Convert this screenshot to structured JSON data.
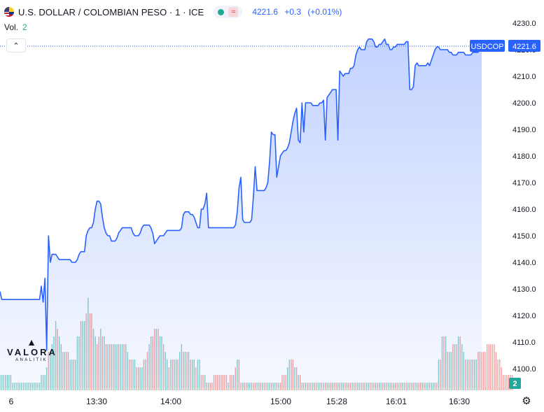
{
  "header": {
    "symbol_text": "U.S. DOLLAR / COLOMBIAN PESO · 1 · ICE",
    "status_icon": "market-open-dot",
    "delay_icon": "≈",
    "last_price": "4221.6",
    "change": "+0.3",
    "change_pct": "(+0.01%)",
    "volume_label": "Vol.",
    "volume_value": "2",
    "collapse_icon": "chevron-up-icon"
  },
  "price_scale": {
    "ticks": [
      "4230.0",
      "4220.0",
      "4210.0",
      "4200.0",
      "4190.0",
      "4180.0",
      "4170.0",
      "4160.0",
      "4150.0",
      "4140.0",
      "4130.0",
      "4120.0",
      "4110.0",
      "4100.0"
    ],
    "symbol_badge": "USDCOP",
    "last_badge": "4221.6",
    "volume_badge": "2"
  },
  "time_scale": {
    "ticks": [
      "6",
      "13:30",
      "14:00",
      "15:00",
      "15:28",
      "16:01",
      "16:30"
    ]
  },
  "watermark": {
    "logo_mark": "▲",
    "name": "VALORA",
    "sub": "ANALITIK"
  },
  "colors": {
    "line": "#2962ff",
    "up_volume": "#26a69a",
    "down_volume": "#ef5350",
    "accent": "#2962ff"
  },
  "chart_data": {
    "type": "area",
    "title": "U.S. DOLLAR / COLOMBIAN PESO · 1 · ICE",
    "xlabel": "",
    "ylabel": "",
    "ylim": [
      4093,
      4232
    ],
    "x_ticks": [
      "6",
      "13:30",
      "14:00",
      "15:00",
      "15:28",
      "16:01",
      "16:30"
    ],
    "grid": false,
    "price": [
      4129,
      4126,
      4126,
      4126,
      4126,
      4126,
      4126,
      4126,
      4126,
      4126,
      4126,
      4126,
      4126,
      4126,
      4126,
      4126,
      4126,
      4126,
      4126,
      4126,
      4126,
      4126,
      4126,
      4131,
      4125,
      4134,
      4107,
      4150,
      4140,
      4143,
      4143,
      4143,
      4142,
      4141,
      4141,
      4141,
      4141,
      4141,
      4141,
      4141,
      4140,
      4140,
      4140,
      4141,
      4143,
      4144,
      4144,
      4144,
      4150,
      4152,
      4153,
      4153,
      4155,
      4160,
      4163,
      4163,
      4162,
      4157,
      4153,
      4151,
      4150,
      4150,
      4148,
      4148,
      4148,
      4149,
      4151,
      4152,
      4153,
      4153,
      4153,
      4153,
      4153,
      4153,
      4151,
      4150,
      4150,
      4150,
      4151,
      4153,
      4154,
      4154,
      4154,
      4154,
      4153,
      4151,
      4147,
      4148,
      4149,
      4150,
      4150,
      4150,
      4151,
      4152,
      4152,
      4152,
      4152,
      4152,
      4152,
      4152,
      4152,
      4153,
      4158,
      4159,
      4159,
      4159,
      4158,
      4158,
      4157,
      4155,
      4153,
      4153,
      4160,
      4160,
      4162,
      4166,
      4153,
      4153,
      4153,
      4153,
      4153,
      4153,
      4153,
      4153,
      4153,
      4153,
      4153,
      4153,
      4153,
      4153,
      4153,
      4154,
      4159,
      4168,
      4172,
      4156,
      4155,
      4155,
      4155,
      4155,
      4156,
      4165,
      4176,
      4167,
      4167,
      4167,
      4167,
      4167,
      4168,
      4170,
      4178,
      4189,
      4188,
      4188,
      4172,
      4176,
      4180,
      4181,
      4182,
      4182,
      4183,
      4185,
      4189,
      4193,
      4196,
      4198,
      4186,
      4185,
      4200,
      4189,
      4200,
      4200,
      4200,
      4200,
      4199,
      4199,
      4199,
      4199,
      4200,
      4200,
      4201,
      4186,
      4202,
      4203,
      4204,
      4205,
      4205,
      4205,
      4186,
      4212,
      4211,
      4210,
      4211,
      4211,
      4211,
      4213,
      4213,
      4214,
      4218,
      4220,
      4221,
      4220,
      4220,
      4220,
      4223,
      4224,
      4224,
      4224,
      4223,
      4221,
      4221,
      4222,
      4222,
      4223,
      4224,
      4222,
      4222,
      4220,
      4220,
      4221,
      4221,
      4222,
      4222,
      4222,
      4222,
      4222,
      4223,
      4223,
      4205,
      4205,
      4206,
      4214,
      4215,
      4214,
      4214,
      4214,
      4214,
      4214,
      4215,
      4214,
      4216,
      4218,
      4220,
      4221,
      4221,
      4220,
      4220,
      4220,
      4220,
      4220,
      4219,
      4219,
      4218,
      4218,
      4218,
      4219,
      4219,
      4219,
      4219,
      4218,
      4218,
      4218,
      4218,
      4219,
      4219,
      4219,
      4219,
      4221,
      4221
    ],
    "volume": [
      2,
      2,
      2,
      2,
      2,
      2,
      2,
      1,
      1,
      1,
      1,
      1,
      1,
      1,
      1,
      1,
      1,
      1,
      1,
      1,
      1,
      1,
      1,
      2,
      2,
      2,
      3,
      5,
      5,
      6,
      7,
      9,
      8,
      7,
      6,
      5,
      5,
      5,
      5,
      4,
      4,
      4,
      4,
      7,
      7,
      9,
      9,
      9,
      10,
      12,
      10,
      10,
      8,
      7,
      6,
      7,
      8,
      7,
      7,
      6,
      6,
      6,
      6,
      6,
      6,
      6,
      6,
      6,
      6,
      6,
      6,
      5,
      4,
      4,
      4,
      4,
      3,
      3,
      3,
      3,
      4,
      4,
      5,
      6,
      7,
      7,
      8,
      8,
      8,
      7,
      7,
      6,
      5,
      4,
      3,
      4,
      4,
      4,
      4,
      4,
      5,
      6,
      5,
      5,
      5,
      5,
      4,
      4,
      4,
      3,
      4,
      4,
      2,
      2,
      2,
      1,
      1,
      1,
      1,
      2,
      2,
      2,
      2,
      2,
      2,
      2,
      2,
      1,
      2,
      2,
      2,
      3,
      4,
      4,
      1,
      1,
      1,
      1,
      1,
      1,
      1,
      1,
      1,
      1,
      1,
      1,
      1,
      1,
      1,
      1,
      1,
      1,
      1,
      1,
      1,
      1,
      1,
      2,
      2,
      2,
      3,
      4,
      4,
      4,
      3,
      3,
      2,
      2,
      1,
      1,
      1,
      1,
      1,
      1,
      1,
      1,
      1,
      1,
      1,
      1,
      1,
      1,
      1,
      1,
      1,
      1,
      1,
      1,
      1,
      1,
      1,
      1,
      1,
      1,
      1,
      1,
      1,
      1,
      1,
      1,
      1,
      1,
      1,
      1,
      1,
      1,
      1,
      1,
      1,
      1,
      1,
      1,
      1,
      1,
      1,
      1,
      1,
      1,
      1,
      1,
      1,
      1,
      1,
      1,
      1,
      1,
      1,
      1,
      1,
      1,
      1,
      1,
      1,
      1,
      1,
      1,
      1,
      1,
      1,
      1,
      1,
      1,
      1,
      1,
      4,
      4,
      7,
      7,
      7,
      5,
      5,
      5,
      6,
      6,
      6,
      7,
      7,
      6,
      5,
      4,
      4,
      4,
      4,
      4,
      4,
      4,
      5,
      5,
      5,
      5,
      5,
      6,
      6,
      6,
      6,
      6,
      5,
      4,
      4,
      3,
      2,
      2,
      2,
      2,
      2,
      2
    ],
    "volume_up": [
      true,
      true,
      true,
      true,
      true,
      true,
      true,
      true,
      true,
      true,
      true,
      true,
      true,
      true,
      true,
      true,
      true,
      true,
      true,
      true,
      true,
      true,
      true,
      true,
      true,
      true,
      true,
      false,
      true,
      true,
      true,
      true,
      false,
      true,
      true,
      false,
      true,
      false,
      false,
      true,
      true,
      false,
      true,
      true,
      true,
      false,
      true,
      true,
      false,
      true,
      false,
      false,
      true,
      true,
      false,
      false,
      true,
      false,
      true,
      false,
      true,
      false,
      true,
      false,
      true,
      true,
      false,
      true,
      true,
      false,
      true,
      true,
      false,
      false,
      true,
      true,
      false,
      false,
      true,
      true,
      false,
      true,
      false,
      true,
      true,
      false,
      false,
      true,
      false,
      true,
      true,
      false,
      true,
      true,
      false,
      true,
      false,
      true,
      true,
      false,
      true,
      true,
      false,
      true,
      false,
      true,
      false,
      true,
      true,
      false,
      true,
      true,
      false,
      false,
      true,
      false,
      true,
      false,
      false,
      false,
      false,
      false,
      false,
      false,
      false,
      false,
      false,
      true,
      false,
      false,
      true,
      false,
      true,
      false,
      false,
      true,
      false,
      false,
      true,
      true,
      true,
      false,
      false,
      true,
      true,
      false,
      true,
      false,
      false,
      true,
      true,
      false,
      true,
      true,
      false,
      true,
      false,
      false,
      false,
      false,
      true,
      true,
      false,
      false,
      true,
      false,
      true,
      false,
      true,
      false,
      true,
      false,
      true,
      false,
      true,
      false,
      false,
      true,
      true,
      false,
      true,
      false,
      true,
      true,
      false,
      true,
      false,
      false,
      true,
      false,
      true,
      true,
      false,
      true,
      false,
      false,
      true,
      true,
      false,
      true,
      true,
      false,
      true,
      false,
      true,
      true,
      false,
      true,
      false,
      true,
      false,
      true,
      true,
      false,
      true,
      false,
      true,
      true,
      false,
      true,
      false,
      false,
      true,
      false,
      true,
      true,
      false,
      true,
      false,
      true,
      false,
      true,
      true,
      false,
      false,
      true,
      false,
      true,
      true,
      false,
      true,
      true,
      false,
      false,
      true,
      false,
      true,
      false,
      true,
      false,
      true,
      true,
      false,
      true,
      false,
      true,
      false,
      true,
      true,
      false,
      true,
      false,
      true,
      false,
      true,
      true
    ]
  }
}
